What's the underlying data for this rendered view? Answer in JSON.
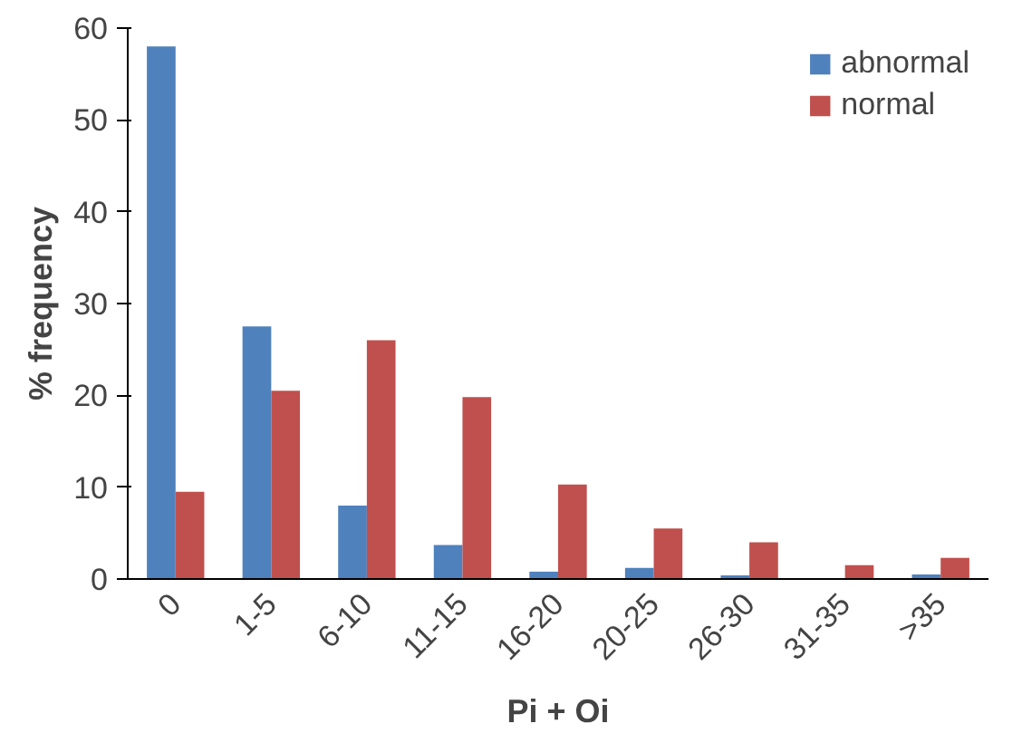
{
  "chart_data": {
    "type": "bar",
    "xlabel": "Pi + Oi",
    "ylabel": "% frequency",
    "categories": [
      "0",
      "1-5",
      "6-10",
      "11-15",
      "16-20",
      "20-25",
      "26-30",
      "31-35",
      ">35"
    ],
    "series": [
      {
        "name": "abnormal",
        "color": "#4f81bd",
        "values": [
          58,
          27.5,
          8,
          3.7,
          0.8,
          1.2,
          0.4,
          0,
          0.5
        ]
      },
      {
        "name": "normal",
        "color": "#c0504d",
        "values": [
          9.5,
          20.5,
          26,
          19.8,
          10.3,
          5.5,
          4,
          1.5,
          2.3
        ]
      }
    ],
    "ylim": [
      0,
      60
    ],
    "yticks": [
      0,
      10,
      20,
      30,
      40,
      50,
      60
    ],
    "grid": false,
    "legend": "top right"
  }
}
